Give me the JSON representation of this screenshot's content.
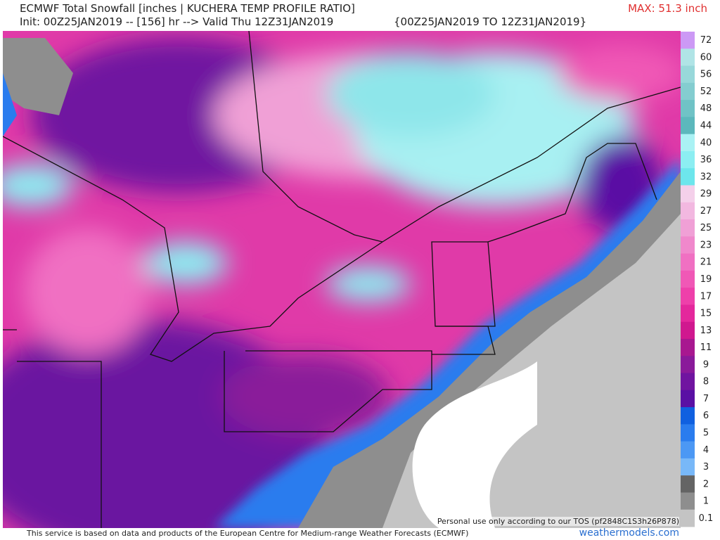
{
  "header": {
    "title": "ECMWF Total Snowfall [inches | KUCHERA TEMP PROFILE RATIO]",
    "max": "MAX: 51.3 inch",
    "init": "Init: 00Z25JAN2019 -- [156] hr --> Valid Thu 12Z31JAN2019",
    "range": "{00Z25JAN2019 TO 12Z31JAN2019}"
  },
  "legend": [
    {
      "label": "72",
      "color": "#cc99f5"
    },
    {
      "label": "60",
      "color": "#b0e4e6"
    },
    {
      "label": "56",
      "color": "#98d8da"
    },
    {
      "label": "52",
      "color": "#84cdd0"
    },
    {
      "label": "48",
      "color": "#70c3c6"
    },
    {
      "label": "44",
      "color": "#5cb8bc"
    },
    {
      "label": "40",
      "color": "#aaf2f4"
    },
    {
      "label": "36",
      "color": "#8ceef2"
    },
    {
      "label": "32",
      "color": "#6de6ec"
    },
    {
      "label": "29",
      "color": "#f4d0ea"
    },
    {
      "label": "27",
      "color": "#f2b8e0"
    },
    {
      "label": "25",
      "color": "#f0a0d6"
    },
    {
      "label": "23",
      "color": "#f088cc"
    },
    {
      "label": "21",
      "color": "#f070c2"
    },
    {
      "label": "19",
      "color": "#f058b6"
    },
    {
      "label": "17",
      "color": "#ee40aa"
    },
    {
      "label": "15",
      "color": "#e4289c"
    },
    {
      "label": "13",
      "color": "#d0188f"
    },
    {
      "label": "11",
      "color": "#a81890"
    },
    {
      "label": "9",
      "color": "#8a1a9a"
    },
    {
      "label": "8",
      "color": "#7014a0"
    },
    {
      "label": "7",
      "color": "#5a10a4"
    },
    {
      "label": "6",
      "color": "#1060e0"
    },
    {
      "label": "5",
      "color": "#2a7cee"
    },
    {
      "label": "4",
      "color": "#4c98f4"
    },
    {
      "label": "3",
      "color": "#78b8f8"
    },
    {
      "label": "2",
      "color": "#646464"
    },
    {
      "label": "1",
      "color": "#8e8e8e"
    },
    {
      "label": "0.1",
      "color": "#c4c4c4"
    }
  ],
  "footer": {
    "disclaimer": "This service is based on data and products of the European Centre for Medium-range Weather Forecasts (ECMWF)",
    "site": "weathermodels.com",
    "tos": "Personal use only according to our TOS (pf2848C1S3h26P878)"
  }
}
